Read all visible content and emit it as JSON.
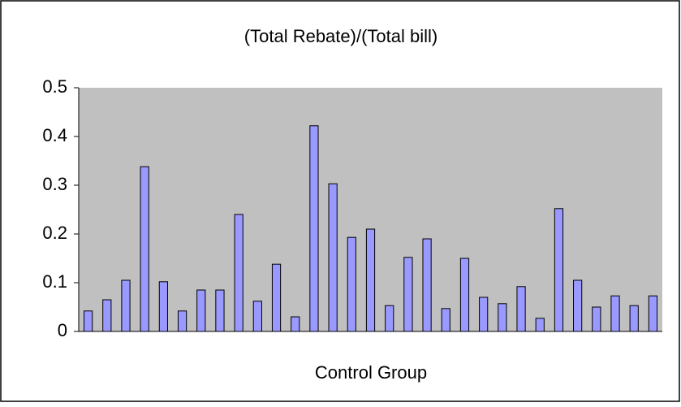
{
  "chart_data": {
    "type": "bar",
    "title": "(Total Rebate)/(Total bill)",
    "x_label": "Control Group",
    "categories": [
      null,
      null,
      null,
      null,
      null,
      null,
      null,
      null,
      null,
      null,
      null,
      null,
      null,
      null,
      null,
      null,
      null,
      null,
      null,
      null,
      null,
      null,
      null,
      null,
      null,
      null,
      null,
      null,
      null,
      null,
      null
    ],
    "values": [
      0.042,
      0.065,
      0.105,
      0.338,
      0.102,
      0.042,
      0.085,
      0.085,
      0.24,
      0.062,
      0.138,
      0.03,
      0.422,
      0.303,
      0.193,
      0.21,
      0.053,
      0.152,
      0.19,
      0.047,
      0.15,
      0.07,
      0.057,
      0.092,
      0.027,
      0.252,
      0.105,
      0.05,
      0.073,
      0.053,
      0.073
    ],
    "color": "#9999ff",
    "plot_background": "#c0c0c0",
    "ylim": [
      0,
      0.5
    ],
    "yticks": [
      0,
      0.1,
      0.2,
      0.3,
      0.4,
      0.5
    ],
    "grid": false
  }
}
